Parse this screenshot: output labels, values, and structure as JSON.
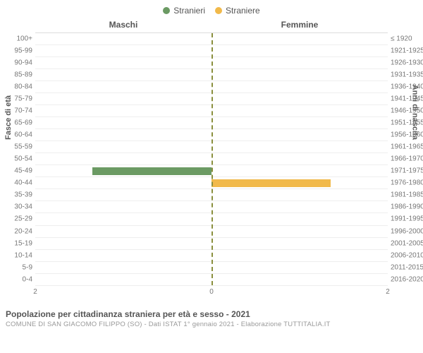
{
  "legend": {
    "items": [
      {
        "label": "Stranieri",
        "color": "#6b9a63"
      },
      {
        "label": "Straniere",
        "color": "#f1b94a"
      }
    ]
  },
  "columns": {
    "left": "Maschi",
    "right": "Femmine"
  },
  "axes": {
    "left_label": "Fasce di età",
    "right_label": "Anni di nascita",
    "label_fontsize": 11,
    "center_line_color": "#8a8f3d",
    "grid_color": "#eeeeee"
  },
  "chart": {
    "type": "population_pyramid",
    "xlim": 2,
    "xticks": [
      2,
      0,
      2
    ],
    "background_color": "#ffffff",
    "bar_height_pct": 70
  },
  "rows": [
    {
      "age": "100+",
      "birth": "≤ 1920",
      "male": 0,
      "female": 0
    },
    {
      "age": "95-99",
      "birth": "1921-1925",
      "male": 0,
      "female": 0
    },
    {
      "age": "90-94",
      "birth": "1926-1930",
      "male": 0,
      "female": 0
    },
    {
      "age": "85-89",
      "birth": "1931-1935",
      "male": 0,
      "female": 0
    },
    {
      "age": "80-84",
      "birth": "1936-1940",
      "male": 0,
      "female": 0
    },
    {
      "age": "75-79",
      "birth": "1941-1945",
      "male": 0,
      "female": 0
    },
    {
      "age": "70-74",
      "birth": "1946-1950",
      "male": 0,
      "female": 0
    },
    {
      "age": "65-69",
      "birth": "1951-1955",
      "male": 0,
      "female": 0
    },
    {
      "age": "60-64",
      "birth": "1956-1960",
      "male": 0,
      "female": 0
    },
    {
      "age": "55-59",
      "birth": "1961-1965",
      "male": 0,
      "female": 0
    },
    {
      "age": "50-54",
      "birth": "1966-1970",
      "male": 0,
      "female": 0
    },
    {
      "age": "45-49",
      "birth": "1971-1975",
      "male": 1.35,
      "female": 0
    },
    {
      "age": "40-44",
      "birth": "1976-1980",
      "male": 0,
      "female": 1.35
    },
    {
      "age": "35-39",
      "birth": "1981-1985",
      "male": 0,
      "female": 0
    },
    {
      "age": "30-34",
      "birth": "1986-1990",
      "male": 0,
      "female": 0
    },
    {
      "age": "25-29",
      "birth": "1991-1995",
      "male": 0,
      "female": 0
    },
    {
      "age": "20-24",
      "birth": "1996-2000",
      "male": 0,
      "female": 0
    },
    {
      "age": "15-19",
      "birth": "2001-2005",
      "male": 0,
      "female": 0
    },
    {
      "age": "10-14",
      "birth": "2006-2010",
      "male": 0,
      "female": 0
    },
    {
      "age": "5-9",
      "birth": "2011-2015",
      "male": 0,
      "female": 0
    },
    {
      "age": "0-4",
      "birth": "2016-2020",
      "male": 0,
      "female": 0
    }
  ],
  "footer": {
    "title": "Popolazione per cittadinanza straniera per età e sesso - 2021",
    "subtitle": "COMUNE DI SAN GIACOMO FILIPPO (SO) - Dati ISTAT 1° gennaio 2021 - Elaborazione TUTTITALIA.IT"
  }
}
